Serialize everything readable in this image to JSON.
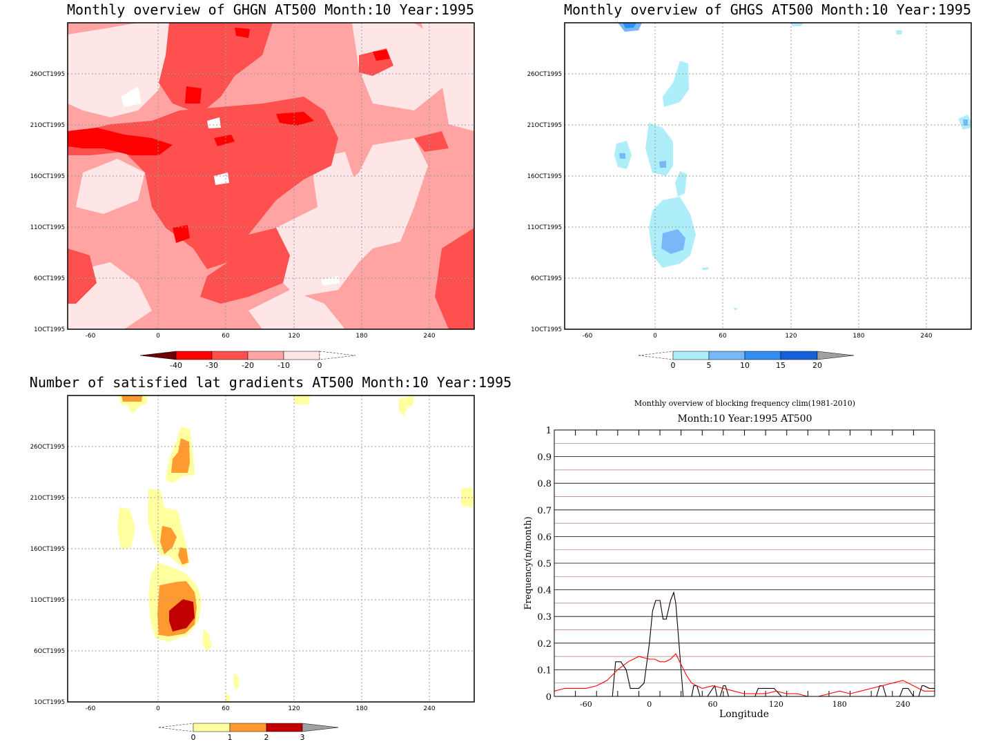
{
  "chart_data": [
    {
      "type": "heatmap",
      "title": "Monthly overview of GHGN AT500 Month:10 Year:1995",
      "x_ticks": [
        "-60",
        "0",
        "60",
        "120",
        "180",
        "240"
      ],
      "x_tick_values": [
        -60,
        0,
        60,
        120,
        180,
        240
      ],
      "xlim": [
        -80,
        280
      ],
      "y_ticks": [
        "1OCT1995",
        "6OCT1995",
        "11OCT1995",
        "16OCT1995",
        "21OCT1995",
        "26OCT1995"
      ],
      "y_tick_values": [
        1,
        6,
        11,
        16,
        21,
        26
      ],
      "ylim": [
        1,
        31
      ],
      "grid": true,
      "colorbar": {
        "labels": [
          "-40",
          "-30",
          "-20",
          "-10",
          "0"
        ],
        "colors": [
          "#6b0000",
          "#ff0000",
          "#ff5050",
          "#ffa3a3",
          "#ffe6e6",
          "#ffffff"
        ],
        "extend": "both"
      }
    },
    {
      "type": "heatmap",
      "title": "Monthly overview of GHGS AT500 Month:10 Year:1995",
      "x_ticks": [
        "-60",
        "0",
        "60",
        "120",
        "180",
        "240"
      ],
      "x_tick_values": [
        -60,
        0,
        60,
        120,
        180,
        240
      ],
      "xlim": [
        -80,
        280
      ],
      "y_ticks": [
        "1OCT1995",
        "6OCT1995",
        "11OCT1995",
        "16OCT1995",
        "21OCT1995",
        "26OCT1995"
      ],
      "y_tick_values": [
        1,
        6,
        11,
        16,
        21,
        26
      ],
      "ylim": [
        1,
        31
      ],
      "grid": true,
      "colorbar": {
        "labels": [
          "0",
          "5",
          "10",
          "15",
          "20"
        ],
        "colors": [
          "#ffffff",
          "#aeeef8",
          "#78b8f8",
          "#2f8ef0",
          "#1560d8",
          "#a0a0a0"
        ],
        "extend": "both"
      }
    },
    {
      "type": "heatmap",
      "title": "Number of satisfied lat gradients AT500 Month:10 Year:1995",
      "x_ticks": [
        "-60",
        "0",
        "60",
        "120",
        "180",
        "240"
      ],
      "x_tick_values": [
        -60,
        0,
        60,
        120,
        180,
        240
      ],
      "xlim": [
        -80,
        280
      ],
      "y_ticks": [
        "1OCT1995",
        "6OCT1995",
        "11OCT1995",
        "16OCT1995",
        "21OCT1995",
        "26OCT1995"
      ],
      "y_tick_values": [
        1,
        6,
        11,
        16,
        21,
        26
      ],
      "ylim": [
        1,
        31
      ],
      "grid": true,
      "colorbar": {
        "labels": [
          "0",
          "1",
          "2",
          "3"
        ],
        "colors": [
          "#ffffff",
          "#ffffa0",
          "#ff9a30",
          "#c00000",
          "#a0a0a0"
        ],
        "extend": "both"
      }
    },
    {
      "type": "line",
      "title": "Monthly overview of blocking frequency clim(1981-2010)",
      "subtitle": "Month:10 Year:1995  AT500",
      "xlabel": "Longitude",
      "ylabel": "Frequency(n/month)",
      "xlim": [
        -90,
        270
      ],
      "ylim": [
        0,
        1
      ],
      "x_ticks": [
        "-60",
        "0",
        "60",
        "120",
        "180",
        "240"
      ],
      "x_tick_values": [
        -60,
        0,
        60,
        120,
        180,
        240
      ],
      "y_ticks": [
        "0",
        "0.1",
        "0.2",
        "0.3",
        "0.4",
        "0.5",
        "0.6",
        "0.7",
        "0.8",
        "0.9",
        "1"
      ],
      "y_tick_values": [
        0,
        0.1,
        0.2,
        0.3,
        0.4,
        0.5,
        0.6,
        0.7,
        0.8,
        0.9,
        1
      ],
      "series": [
        {
          "color": "#000000",
          "x": [
            -90,
            -35,
            -32,
            -27,
            -22,
            -18,
            -10,
            -5,
            0,
            3,
            6,
            10,
            13,
            16,
            20,
            23,
            25,
            28,
            32,
            37,
            40,
            42,
            45,
            48,
            52,
            55,
            60,
            62,
            64,
            67,
            70,
            72,
            75,
            80,
            100,
            103,
            106,
            110,
            115,
            118,
            125,
            150,
            200,
            215,
            218,
            221,
            224,
            227,
            232,
            237,
            240,
            245,
            250,
            255,
            258,
            260,
            265,
            270
          ],
          "y": [
            0,
            0,
            0.13,
            0.13,
            0.1,
            0.03,
            0.03,
            0.05,
            0.2,
            0.32,
            0.36,
            0.36,
            0.29,
            0.29,
            0.36,
            0.39,
            0.35,
            0.2,
            0,
            0,
            0,
            0.04,
            0.04,
            0,
            0,
            0,
            0.03,
            0.04,
            0,
            0,
            0.04,
            0.04,
            0,
            0,
            0,
            0.03,
            0.03,
            0.03,
            0.03,
            0.03,
            0,
            0,
            0,
            0,
            0.04,
            0.04,
            0,
            0,
            0,
            0,
            0.03,
            0.03,
            0,
            0,
            0.04,
            0.04,
            0.03,
            0.03
          ]
        },
        {
          "color": "#ff0000",
          "x": [
            -90,
            -80,
            -70,
            -60,
            -50,
            -40,
            -30,
            -20,
            -10,
            0,
            5,
            10,
            15,
            20,
            25,
            30,
            35,
            40,
            45,
            50,
            60,
            70,
            80,
            90,
            100,
            110,
            120,
            130,
            140,
            150,
            160,
            170,
            180,
            190,
            200,
            210,
            220,
            230,
            240,
            250,
            260,
            270
          ],
          "y": [
            0.02,
            0.03,
            0.03,
            0.03,
            0.04,
            0.06,
            0.1,
            0.13,
            0.15,
            0.14,
            0.14,
            0.13,
            0.13,
            0.14,
            0.16,
            0.12,
            0.08,
            0.05,
            0.04,
            0.03,
            0.04,
            0.03,
            0.02,
            0.01,
            0.01,
            0.01,
            0.02,
            0.01,
            0.01,
            0,
            0,
            0.01,
            0.02,
            0.01,
            0.02,
            0.03,
            0.04,
            0.05,
            0.06,
            0.04,
            0.02,
            0.02
          ]
        }
      ],
      "h_lines_dark": [
        0.1,
        0.2,
        0.3,
        0.4,
        0.5,
        0.6,
        0.7,
        0.8,
        0.9
      ],
      "h_lines_light": [
        0.05,
        0.15,
        0.25,
        0.35,
        0.45,
        0.55,
        0.65,
        0.75,
        0.85,
        0.95
      ]
    }
  ]
}
